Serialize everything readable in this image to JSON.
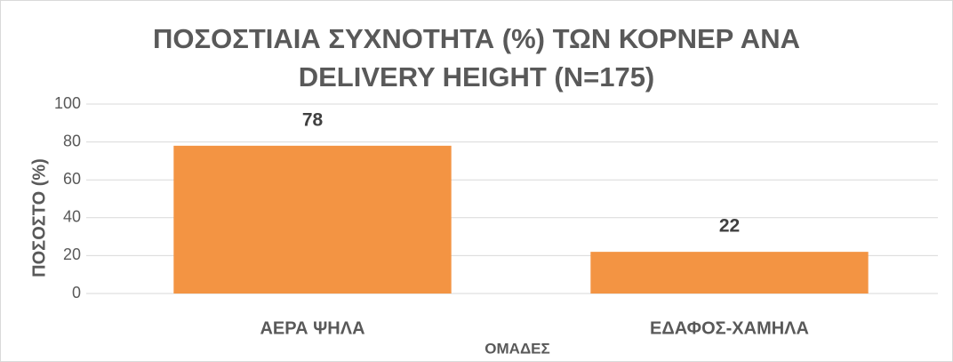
{
  "chart_data": {
    "type": "bar",
    "title": "ΠΟΣΟΣΤΙΑΙΑ ΣΥΧΝΟΤΗΤΑ (%) ΤΩΝ ΚΟΡΝΕΡ ΑΝΑ DELIVERY HEIGHT (N=175)",
    "x_label": "ΟΜΑΔΕΣ",
    "y_label": "ΠΟΣΟΣΤΟ (%)",
    "categories": [
      "ΑΕΡΑ ΨΗΛΑ",
      "ΕΔΑΦΟΣ-ΧΑΜΗΛΑ"
    ],
    "values": [
      78,
      22
    ],
    "color": "#f39443",
    "ylim": [
      0,
      100
    ],
    "yticks": [
      0,
      20,
      40,
      60,
      80,
      100
    ],
    "grid": true
  }
}
